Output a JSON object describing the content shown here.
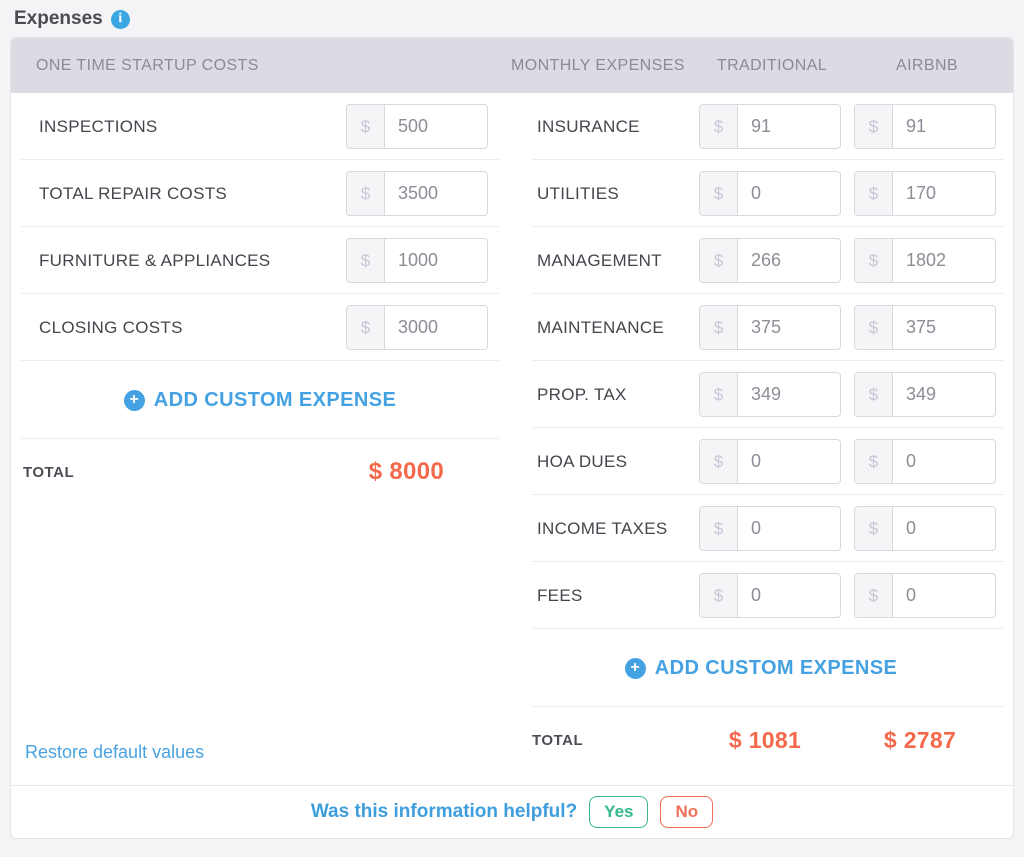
{
  "title": "Expenses",
  "currency": "$",
  "header": {
    "startup": "ONE TIME STARTUP COSTS",
    "monthly": "MONTHLY EXPENSES",
    "traditional": "TRADITIONAL",
    "airbnb": "AIRBNB"
  },
  "startup": {
    "rows": [
      {
        "label": "INSPECTIONS",
        "value": "500"
      },
      {
        "label": "TOTAL REPAIR COSTS",
        "value": "3500"
      },
      {
        "label": "FURNITURE & APPLIANCES",
        "value": "1000"
      },
      {
        "label": "CLOSING COSTS",
        "value": "3000"
      }
    ],
    "add_label": "ADD CUSTOM EXPENSE",
    "total_label": "TOTAL",
    "total_value": "$ 8000"
  },
  "monthly": {
    "rows": [
      {
        "label": "INSURANCE",
        "traditional": "91",
        "airbnb": "91"
      },
      {
        "label": "UTILITIES",
        "traditional": "0",
        "airbnb": "170"
      },
      {
        "label": "MANAGEMENT",
        "traditional": "266",
        "airbnb": "1802"
      },
      {
        "label": "MAINTENANCE",
        "traditional": "375",
        "airbnb": "375"
      },
      {
        "label": "PROP. TAX",
        "traditional": "349",
        "airbnb": "349"
      },
      {
        "label": "HOA DUES",
        "traditional": "0",
        "airbnb": "0"
      },
      {
        "label": "INCOME TAXES",
        "traditional": "0",
        "airbnb": "0"
      },
      {
        "label": "FEES",
        "traditional": "0",
        "airbnb": "0"
      }
    ],
    "add_label": "ADD CUSTOM EXPENSE",
    "total_label": "TOTAL",
    "total_traditional": "$ 1081",
    "total_airbnb": "$ 2787"
  },
  "footer": {
    "restore_label": "Restore default values",
    "feedback_question": "Was this information helpful?",
    "yes_label": "Yes",
    "no_label": "No"
  },
  "icons": {
    "info": "info-icon",
    "plus": "plus-circle-icon"
  },
  "colors": {
    "accent-blue": "#45a2e2",
    "link-blue": "#4aa3e0",
    "orange": "#f4694c",
    "green": "#35b68e",
    "red": "#f1705b",
    "header-bg": "#dcdbe3",
    "header-text": "#8b8b95",
    "label-text": "#45454d",
    "value-text": "#8d8d97",
    "page-bg": "#f4f3f6"
  }
}
